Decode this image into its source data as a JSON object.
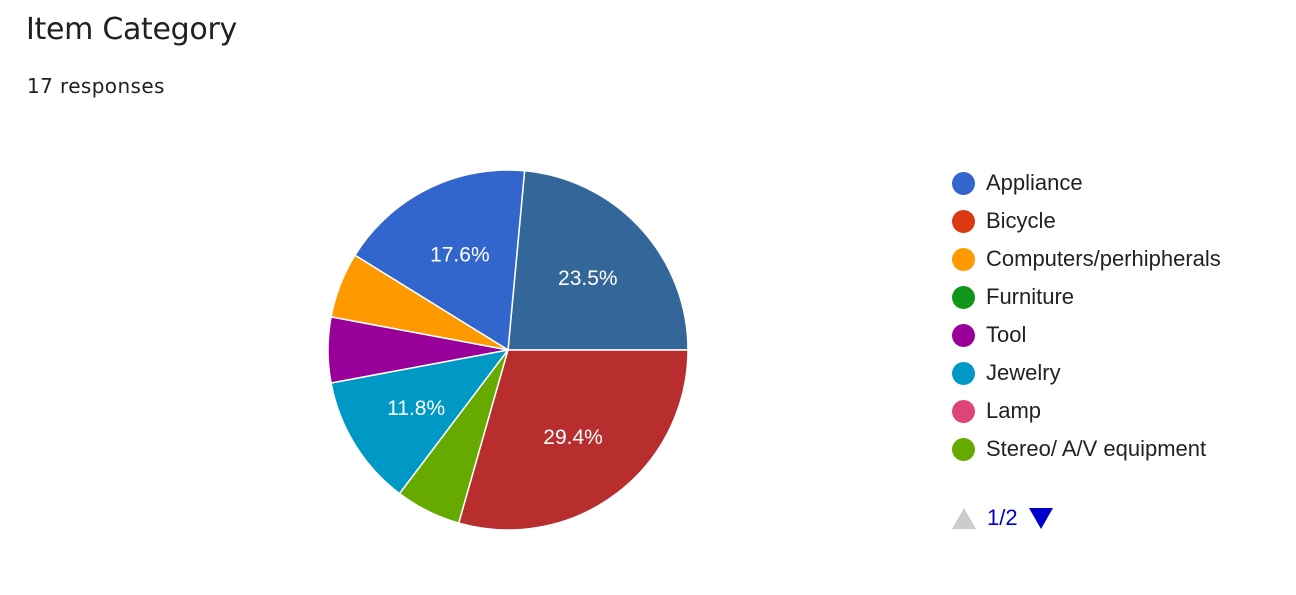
{
  "header": {
    "title": "Item Category",
    "subtitle": "17 responses"
  },
  "chart_data": {
    "type": "pie",
    "title": "Item Category",
    "total_responses": 17,
    "slices": [
      {
        "name": "Stereo/ A/V equipment",
        "value": 4,
        "color": "#336699",
        "label": "23.5%"
      },
      {
        "name": "Appliance",
        "value": 3,
        "color": "#3366cc",
        "label": "17.6%"
      },
      {
        "name": "Computers/perhipherals",
        "value": 1,
        "color": "#ff9900",
        "label": ""
      },
      {
        "name": "Tool",
        "value": 1,
        "color": "#990099",
        "label": ""
      },
      {
        "name": "Jewelry",
        "value": 2,
        "color": "#0099c6",
        "label": "11.8%"
      },
      {
        "name": "Stereo/ A/V equipment",
        "value": 1,
        "color": "#66aa00",
        "label": ""
      },
      {
        "name": "Bicycle",
        "value": 5,
        "color": "#b82e2e",
        "label": "29.4%"
      }
    ],
    "legend_position": "right",
    "legend": [
      {
        "label": "Appliance",
        "color": "#3366cc"
      },
      {
        "label": "Bicycle",
        "color": "#dc3912"
      },
      {
        "label": "Computers/perhipherals",
        "color": "#ff9900"
      },
      {
        "label": "Furniture",
        "color": "#109618"
      },
      {
        "label": "Tool",
        "color": "#990099"
      },
      {
        "label": "Jewelry",
        "color": "#0099c6"
      },
      {
        "label": "Lamp",
        "color": "#dd4477"
      },
      {
        "label": "Stereo/ A/V equipment",
        "color": "#66aa00"
      }
    ]
  },
  "pager": {
    "text": "1/2"
  }
}
